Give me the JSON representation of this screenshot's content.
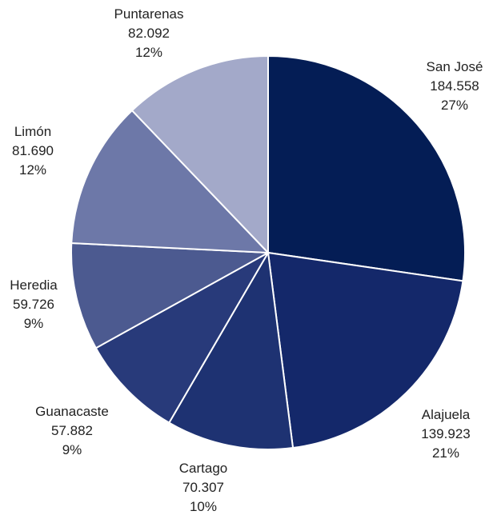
{
  "chart_data": {
    "type": "pie",
    "title": "",
    "categories": [
      "San José",
      "Alajuela",
      "Cartago",
      "Guanacaste",
      "Heredia",
      "Limón",
      "Puntarenas"
    ],
    "values": [
      184558,
      139923,
      70307,
      57882,
      59726,
      81690,
      82092
    ],
    "value_labels": [
      "184.558",
      "139.923",
      "70.307",
      "57.882",
      "59.726",
      "81.690",
      "82.092"
    ],
    "percent_labels": [
      "27%",
      "21%",
      "10%",
      "9%",
      "9%",
      "12%",
      "12%"
    ],
    "colors": [
      "#041d55",
      "#14286a",
      "#1e3272",
      "#283a7a",
      "#4c5a90",
      "#6d78a8",
      "#a3a9c9"
    ],
    "start_angle_deg": 0,
    "direction": "clockwise",
    "legend": "none",
    "slice_labels": [
      {
        "name": "San José",
        "value": "184.558",
        "percent": "27%"
      },
      {
        "name": "Alajuela",
        "value": "139.923",
        "percent": "21%"
      },
      {
        "name": "Cartago",
        "value": "70.307",
        "percent": "10%"
      },
      {
        "name": "Guanacaste",
        "value": "57.882",
        "percent": "9%"
      },
      {
        "name": "Heredia",
        "value": "59.726",
        "percent": "9%"
      },
      {
        "name": "Limón",
        "value": "81.690",
        "percent": "12%"
      },
      {
        "name": "Puntarenas",
        "value": "82.092",
        "percent": "12%"
      }
    ]
  }
}
